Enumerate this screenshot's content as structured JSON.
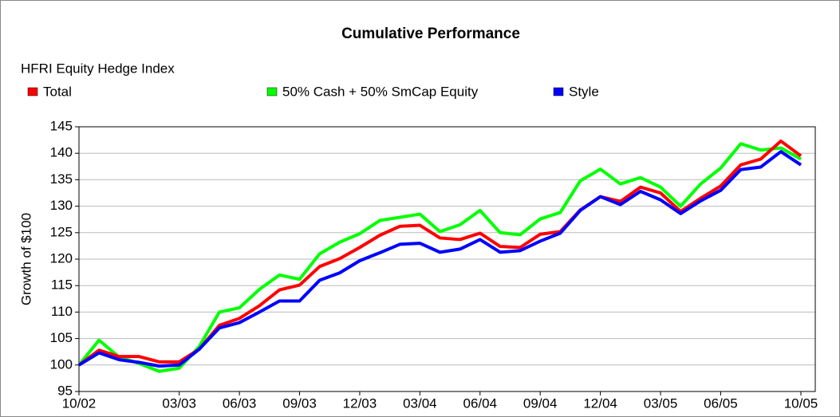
{
  "chart_data": {
    "type": "line",
    "title": "Cumulative Performance",
    "subtitle": "HFRI Equity Hedge Index",
    "y_label": "Growth of $100",
    "categories": [
      "10/02",
      null,
      null,
      null,
      null,
      "03/03",
      null,
      null,
      "06/03",
      null,
      null,
      "09/03",
      null,
      null,
      "12/03",
      null,
      null,
      "03/04",
      null,
      null,
      "06/04",
      null,
      null,
      "09/04",
      null,
      null,
      "12/04",
      null,
      null,
      "03/05",
      null,
      null,
      "06/05",
      null,
      null,
      null,
      "10/05"
    ],
    "series": [
      {
        "name": "Total",
        "color": "#ff0000",
        "values": [
          100,
          102.8,
          101.6,
          101.6,
          100.6,
          100.6,
          103,
          107.5,
          108.8,
          111.2,
          114.2,
          115.1,
          118.6,
          120.1,
          122.2,
          124.5,
          126.2,
          126.4,
          124,
          123.7,
          124.9,
          122.4,
          122.2,
          124.7,
          125.2,
          129.3,
          131.8,
          130.9,
          133.6,
          132.5,
          129,
          131.5,
          133.8,
          137.8,
          138.9,
          142.3,
          139.5
        ]
      },
      {
        "name": "50% Cash + 50% SmCap Equity",
        "color": "#00ff00",
        "values": [
          100,
          104.7,
          101.5,
          100.3,
          98.8,
          99.4,
          103.5,
          110,
          110.8,
          114.3,
          117,
          116.2,
          121,
          123.2,
          124.8,
          127.3,
          127.9,
          128.5,
          125.2,
          126.5,
          129.2,
          125,
          124.6,
          127.6,
          128.8,
          134.8,
          137,
          134.2,
          135.4,
          133.6,
          130,
          134.2,
          137.2,
          141.8,
          140.6,
          141,
          138.9
        ]
      },
      {
        "name": "Style",
        "color": "#0000ff",
        "values": [
          100,
          102.3,
          101,
          100.5,
          99.8,
          100,
          103,
          107,
          108,
          110,
          112.1,
          112.1,
          116,
          117.4,
          119.7,
          121.2,
          122.8,
          123,
          121.3,
          121.9,
          123.7,
          121.3,
          121.6,
          123.4,
          124.9,
          129.2,
          131.8,
          130.3,
          132.8,
          131.2,
          128.6,
          131,
          133,
          136.9,
          137.4,
          140.3,
          137.8
        ]
      }
    ],
    "ylim": [
      95,
      145
    ],
    "yticks": [
      95,
      100,
      105,
      110,
      115,
      120,
      125,
      130,
      135,
      140,
      145
    ],
    "grid": true
  }
}
